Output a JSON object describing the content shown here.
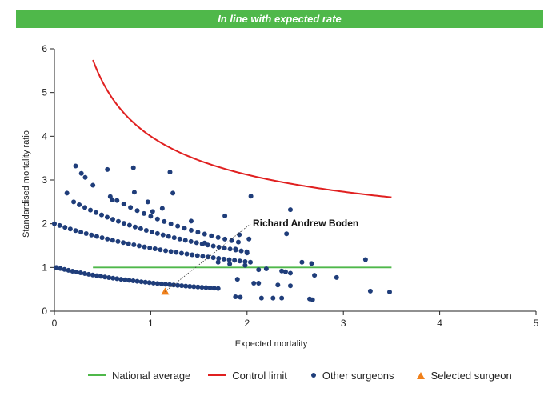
{
  "banner": {
    "text": "In line with expected rate",
    "color": "#4fb84a"
  },
  "chart_data": {
    "type": "scatter",
    "title": "",
    "xlabel": "Expected mortality",
    "ylabel": "Standardised mortality ratio",
    "xlim": [
      0,
      5
    ],
    "ylim": [
      0,
      6
    ],
    "xticks": [
      "0",
      "1",
      "2",
      "3",
      "4",
      "5"
    ],
    "yticks": [
      "0",
      "1",
      "2",
      "3",
      "4",
      "5",
      "6"
    ],
    "grid": false,
    "legend_position": "bottom",
    "annotation": {
      "text": "Richard Andrew Boden",
      "x": 1.15,
      "y": 0.45
    },
    "lines": [
      {
        "name": "National average",
        "color": "#4fb84a",
        "x": [
          0.4,
          3.5
        ],
        "y": [
          1,
          1
        ]
      },
      {
        "name": "Control limit",
        "color": "#e02020",
        "formula": "1 + 3/sqrt(x)",
        "x_range": [
          0.4,
          3.5
        ]
      }
    ],
    "series": [
      {
        "name": "Other surgeons",
        "color": "#1f3d7a",
        "marker": "circle",
        "curves": [
          {
            "deaths": 1,
            "x_range": [
              0.02,
              1.72
            ],
            "step": 0.042
          },
          {
            "deaths": 2,
            "x_range": [
              0.0,
              2.05
            ],
            "step": 0.055
          },
          {
            "deaths": 3,
            "x_range": [
              0.2,
              2.05
            ],
            "step": 0.058
          },
          {
            "deaths": 4,
            "x_range": [
              0.58,
              1.95
            ],
            "step": 0.07
          }
        ],
        "points": [
          [
            0.13,
            2.7
          ],
          [
            0.22,
            3.32
          ],
          [
            0.28,
            3.15
          ],
          [
            0.32,
            3.06
          ],
          [
            0.4,
            2.88
          ],
          [
            0.55,
            3.24
          ],
          [
            0.6,
            2.55
          ],
          [
            0.82,
            3.28
          ],
          [
            0.83,
            2.72
          ],
          [
            0.97,
            2.5
          ],
          [
            1.02,
            2.28
          ],
          [
            1.12,
            2.35
          ],
          [
            1.2,
            3.18
          ],
          [
            1.23,
            2.7
          ],
          [
            1.42,
            2.06
          ],
          [
            1.56,
            1.56
          ],
          [
            1.77,
            2.18
          ],
          [
            1.88,
            1.42
          ],
          [
            1.92,
            1.75
          ],
          [
            2.0,
            1.33
          ],
          [
            2.02,
            1.65
          ],
          [
            2.04,
            2.63
          ],
          [
            2.45,
            2.32
          ],
          [
            2.41,
            1.77
          ],
          [
            1.7,
            1.12
          ],
          [
            1.82,
            1.08
          ],
          [
            1.98,
            1.05
          ],
          [
            2.12,
            0.95
          ],
          [
            2.2,
            0.97
          ],
          [
            2.36,
            0.92
          ],
          [
            2.4,
            0.9
          ],
          [
            2.45,
            0.87
          ],
          [
            2.57,
            1.12
          ],
          [
            2.67,
            1.09
          ],
          [
            2.7,
            0.82
          ],
          [
            2.93,
            0.77
          ],
          [
            3.23,
            1.18
          ],
          [
            1.9,
            0.73
          ],
          [
            2.07,
            0.64
          ],
          [
            2.12,
            0.64
          ],
          [
            2.32,
            0.6
          ],
          [
            2.45,
            0.58
          ],
          [
            1.88,
            0.33
          ],
          [
            1.93,
            0.32
          ],
          [
            2.15,
            0.3
          ],
          [
            2.27,
            0.3
          ],
          [
            2.36,
            0.3
          ],
          [
            2.65,
            0.28
          ],
          [
            2.68,
            0.26
          ],
          [
            3.28,
            0.46
          ],
          [
            3.48,
            0.44
          ]
        ]
      },
      {
        "name": "Selected surgeon",
        "color": "#f0801a",
        "marker": "triangle",
        "x": [
          1.15
        ],
        "y": [
          0.45
        ]
      }
    ]
  },
  "legend": [
    {
      "label": "National average",
      "kind": "line",
      "color": "#4fb84a"
    },
    {
      "label": "Control limit",
      "kind": "line",
      "color": "#e02020"
    },
    {
      "label": "Other surgeons",
      "kind": "dot",
      "color": "#1f3d7a"
    },
    {
      "label": "Selected surgeon",
      "kind": "triangle",
      "color": "#f0801a"
    }
  ]
}
